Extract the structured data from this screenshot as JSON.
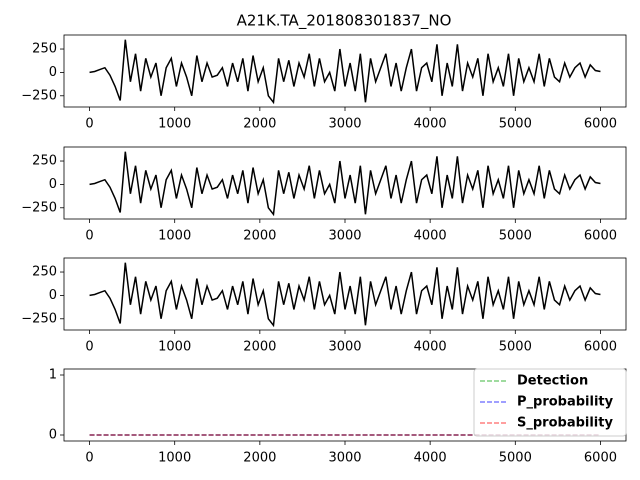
{
  "chart_data": [
    {
      "type": "line",
      "title": "A21K.TA_201808301837_NO",
      "x": [
        0,
        60,
        120,
        180,
        240,
        300,
        360,
        420,
        480,
        540,
        600,
        660,
        720,
        780,
        840,
        900,
        960,
        1020,
        1080,
        1140,
        1200,
        1260,
        1320,
        1380,
        1440,
        1500,
        1560,
        1620,
        1680,
        1740,
        1800,
        1860,
        1920,
        1980,
        2040,
        2100,
        2160,
        2220,
        2280,
        2340,
        2400,
        2460,
        2520,
        2580,
        2640,
        2700,
        2760,
        2820,
        2880,
        2940,
        3000,
        3060,
        3120,
        3180,
        3240,
        3300,
        3360,
        3420,
        3480,
        3540,
        3600,
        3660,
        3720,
        3780,
        3840,
        3900,
        3960,
        4020,
        4080,
        4140,
        4200,
        4260,
        4320,
        4380,
        4440,
        4500,
        4560,
        4620,
        4680,
        4740,
        4800,
        4860,
        4920,
        4980,
        5040,
        5100,
        5160,
        5220,
        5280,
        5340,
        5400,
        5460,
        5520,
        5580,
        5640,
        5700,
        5760,
        5820,
        5880,
        5940,
        6000
      ],
      "series": [
        {
          "color": "#000000",
          "values": [
            0,
            10,
            30,
            50,
            -30,
            -150,
            -300,
            350,
            -100,
            200,
            -200,
            150,
            -50,
            100,
            -250,
            50,
            150,
            -150,
            100,
            -50,
            -250,
            180,
            -100,
            100,
            -50,
            -30,
            50,
            -150,
            100,
            -100,
            150,
            -200,
            180,
            -100,
            50,
            -250,
            -320,
            150,
            -100,
            130,
            -150,
            100,
            -50,
            200,
            -150,
            150,
            -100,
            0,
            -200,
            250,
            -150,
            100,
            -200,
            200,
            -320,
            150,
            -100,
            50,
            200,
            -150,
            100,
            -200,
            50,
            250,
            -200,
            50,
            100,
            -100,
            300,
            -250,
            100,
            -150,
            300,
            -200,
            100,
            -50,
            150,
            -250,
            200,
            -100,
            50,
            -150,
            200,
            -250,
            150,
            -100,
            50,
            -100,
            200,
            -150,
            150,
            -50,
            -100,
            100,
            -50,
            50,
            100,
            -50,
            80,
            20,
            10
          ]
        }
      ],
      "xlim": [
        -300,
        6300
      ],
      "ylim": [
        -370,
        400
      ],
      "xticks": [
        0,
        1000,
        2000,
        3000,
        4000,
        5000,
        6000
      ],
      "yticks": [
        {
          "value": -250,
          "label": "−250"
        },
        0,
        250
      ]
    },
    {
      "type": "line",
      "x": [
        0,
        60,
        120,
        180,
        240,
        300,
        360,
        420,
        480,
        540,
        600,
        660,
        720,
        780,
        840,
        900,
        960,
        1020,
        1080,
        1140,
        1200,
        1260,
        1320,
        1380,
        1440,
        1500,
        1560,
        1620,
        1680,
        1740,
        1800,
        1860,
        1920,
        1980,
        2040,
        2100,
        2160,
        2220,
        2280,
        2340,
        2400,
        2460,
        2520,
        2580,
        2640,
        2700,
        2760,
        2820,
        2880,
        2940,
        3000,
        3060,
        3120,
        3180,
        3240,
        3300,
        3360,
        3420,
        3480,
        3540,
        3600,
        3660,
        3720,
        3780,
        3840,
        3900,
        3960,
        4020,
        4080,
        4140,
        4200,
        4260,
        4320,
        4380,
        4440,
        4500,
        4560,
        4620,
        4680,
        4740,
        4800,
        4860,
        4920,
        4980,
        5040,
        5100,
        5160,
        5220,
        5280,
        5340,
        5400,
        5460,
        5520,
        5580,
        5640,
        5700,
        5760,
        5820,
        5880,
        5940,
        6000
      ],
      "series": [
        {
          "color": "#000000",
          "values": [
            0,
            10,
            30,
            50,
            -30,
            -150,
            -300,
            350,
            -100,
            200,
            -200,
            150,
            -50,
            100,
            -250,
            50,
            150,
            -150,
            100,
            -50,
            -250,
            180,
            -100,
            100,
            -50,
            -30,
            50,
            -150,
            100,
            -100,
            150,
            -200,
            180,
            -100,
            50,
            -250,
            -320,
            150,
            -100,
            130,
            -150,
            100,
            -50,
            200,
            -150,
            150,
            -100,
            0,
            -200,
            250,
            -150,
            100,
            -200,
            200,
            -320,
            150,
            -100,
            50,
            200,
            -150,
            100,
            -200,
            50,
            250,
            -200,
            50,
            100,
            -100,
            300,
            -250,
            100,
            -150,
            300,
            -200,
            100,
            -50,
            150,
            -250,
            200,
            -100,
            50,
            -150,
            200,
            -250,
            150,
            -100,
            50,
            -100,
            200,
            -150,
            150,
            -50,
            -100,
            100,
            -50,
            50,
            100,
            -50,
            80,
            20,
            10
          ]
        }
      ],
      "xlim": [
        -300,
        6300
      ],
      "ylim": [
        -370,
        400
      ],
      "xticks": [
        0,
        1000,
        2000,
        3000,
        4000,
        5000,
        6000
      ],
      "yticks": [
        {
          "value": -250,
          "label": "−250"
        },
        0,
        250
      ]
    },
    {
      "type": "line",
      "x": [
        0,
        60,
        120,
        180,
        240,
        300,
        360,
        420,
        480,
        540,
        600,
        660,
        720,
        780,
        840,
        900,
        960,
        1020,
        1080,
        1140,
        1200,
        1260,
        1320,
        1380,
        1440,
        1500,
        1560,
        1620,
        1680,
        1740,
        1800,
        1860,
        1920,
        1980,
        2040,
        2100,
        2160,
        2220,
        2280,
        2340,
        2400,
        2460,
        2520,
        2580,
        2640,
        2700,
        2760,
        2820,
        2880,
        2940,
        3000,
        3060,
        3120,
        3180,
        3240,
        3300,
        3360,
        3420,
        3480,
        3540,
        3600,
        3660,
        3720,
        3780,
        3840,
        3900,
        3960,
        4020,
        4080,
        4140,
        4200,
        4260,
        4320,
        4380,
        4440,
        4500,
        4560,
        4620,
        4680,
        4740,
        4800,
        4860,
        4920,
        4980,
        5040,
        5100,
        5160,
        5220,
        5280,
        5340,
        5400,
        5460,
        5520,
        5580,
        5640,
        5700,
        5760,
        5820,
        5880,
        5940,
        6000
      ],
      "series": [
        {
          "color": "#000000",
          "values": [
            0,
            10,
            30,
            50,
            -30,
            -150,
            -300,
            350,
            -100,
            200,
            -200,
            150,
            -50,
            100,
            -250,
            50,
            150,
            -150,
            100,
            -50,
            -250,
            180,
            -100,
            100,
            -50,
            -30,
            50,
            -150,
            100,
            -100,
            150,
            -200,
            180,
            -100,
            50,
            -250,
            -320,
            150,
            -100,
            130,
            -150,
            100,
            -50,
            200,
            -150,
            150,
            -100,
            0,
            -200,
            250,
            -150,
            100,
            -200,
            200,
            -320,
            150,
            -100,
            50,
            200,
            -150,
            100,
            -200,
            50,
            250,
            -200,
            50,
            100,
            -100,
            300,
            -250,
            100,
            -150,
            300,
            -200,
            100,
            -50,
            150,
            -250,
            200,
            -100,
            50,
            -150,
            200,
            -250,
            150,
            -100,
            50,
            -100,
            200,
            -150,
            150,
            -50,
            -100,
            100,
            -50,
            50,
            100,
            -50,
            80,
            20,
            10
          ]
        }
      ],
      "xlim": [
        -300,
        6300
      ],
      "ylim": [
        -370,
        400
      ],
      "xticks": [
        0,
        1000,
        2000,
        3000,
        4000,
        5000,
        6000
      ],
      "yticks": [
        {
          "value": -250,
          "label": "−250"
        },
        0,
        250
      ]
    },
    {
      "type": "line",
      "x": [
        0,
        6000
      ],
      "series": [
        {
          "name": "Detection",
          "color": "#00a000",
          "values": [
            0,
            0
          ]
        },
        {
          "name": "P_probability",
          "color": "#0000ff",
          "values": [
            0,
            0
          ]
        },
        {
          "name": "S_probability",
          "color": "#ff0000",
          "values": [
            0,
            0
          ]
        }
      ],
      "dashed": true,
      "legend": "upper right",
      "xlim": [
        -300,
        6300
      ],
      "ylim": [
        -0.1,
        1.1
      ],
      "xticks": [
        0,
        1000,
        2000,
        3000,
        4000,
        5000,
        6000
      ],
      "yticks": [
        0,
        1
      ]
    }
  ]
}
